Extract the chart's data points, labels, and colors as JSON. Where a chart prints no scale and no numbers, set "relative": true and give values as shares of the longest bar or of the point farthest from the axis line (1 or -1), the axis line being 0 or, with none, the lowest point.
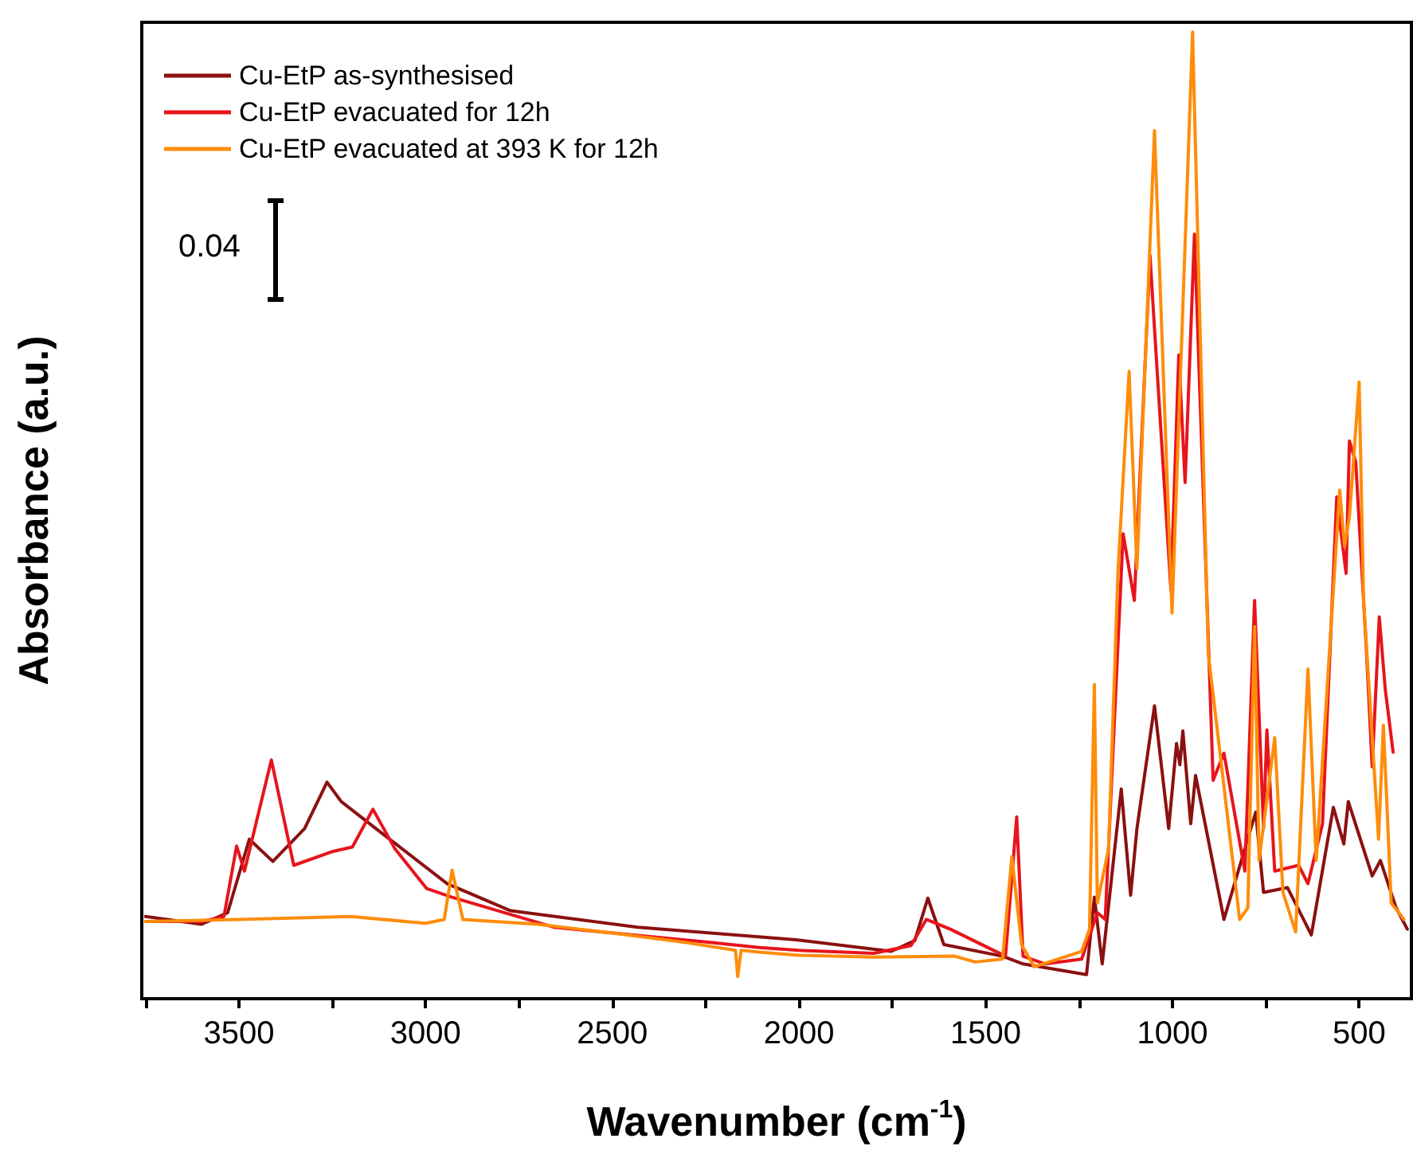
{
  "chart_data": {
    "type": "line",
    "relative": true,
    "xlabel": "Wavenumber (cm$^{-1}$)",
    "ylabel": "Absorbance (a.u.)",
    "xlim": [
      3760,
      360
    ],
    "xticks": [
      {
        "value": 3750,
        "label": null
      },
      3500,
      {
        "value": 3250,
        "label": null
      },
      3000,
      {
        "value": 2750,
        "label": null
      },
      2500,
      {
        "value": 2250,
        "label": null
      },
      2000,
      {
        "value": 1750,
        "label": null
      },
      1500,
      {
        "value": 1250,
        "label": null
      },
      1000,
      {
        "value": 750,
        "label": null
      },
      500
    ],
    "annotations": [
      "0.04"
    ],
    "legend": "top left",
    "grid": false,
    "marker": "none",
    "line_style": "solid",
    "series": [
      {
        "name": "Cu-EtP as-synthesised",
        "color": "#8b1010",
        "x": [
          3750,
          3600,
          3530,
          3472,
          3409,
          3324,
          3264,
          3226,
          3133,
          2942,
          2772,
          2432,
          2008,
          1753,
          1690,
          1655,
          1612,
          1455,
          1400,
          1230,
          1209,
          1188,
          1137,
          1112,
          1095,
          1048,
          1010,
          989,
          980,
          972,
          951,
          938,
          862,
          777,
          756,
          692,
          628,
          569,
          541,
          529,
          465,
          443,
          401,
          371
        ],
        "values": [
          0.085,
          0.077,
          0.089,
          0.165,
          0.142,
          0.176,
          0.224,
          0.204,
          0.176,
          0.119,
          0.091,
          0.074,
          0.061,
          0.049,
          0.06,
          0.104,
          0.056,
          0.044,
          0.036,
          0.025,
          0.105,
          0.036,
          0.217,
          0.107,
          0.176,
          0.303,
          0.176,
          0.264,
          0.242,
          0.277,
          0.181,
          0.231,
          0.082,
          0.193,
          0.11,
          0.115,
          0.066,
          0.198,
          0.16,
          0.204,
          0.127,
          0.143,
          0.094,
          0.072
        ]
      },
      {
        "name": "Cu-EtP evacuated for 12h",
        "color": "#e8141c",
        "x": [
          3750,
          3600,
          3540,
          3506,
          3485,
          3413,
          3353,
          3252,
          3196,
          3141,
          3082,
          2997,
          2929,
          2657,
          2233,
          2106,
          2000,
          1800,
          1700,
          1659,
          1595,
          1447,
          1417,
          1400,
          1341,
          1243,
          1201,
          1180,
          1132,
          1102,
          1060,
          1047,
          1004,
          983,
          966,
          941,
          891,
          862,
          806,
          780,
          756,
          747,
          726,
          662,
          637,
          598,
          560,
          535,
          526,
          509,
          480,
          465,
          446,
          430,
          409
        ],
        "values": [
          0.08,
          0.08,
          0.085,
          0.158,
          0.132,
          0.247,
          0.138,
          0.152,
          0.157,
          0.196,
          0.155,
          0.114,
          0.105,
          0.074,
          0.058,
          0.053,
          0.05,
          0.047,
          0.055,
          0.082,
          0.072,
          0.044,
          0.188,
          0.044,
          0.036,
          0.041,
          0.089,
          0.082,
          0.481,
          0.412,
          0.769,
          0.687,
          0.423,
          0.666,
          0.534,
          0.791,
          0.226,
          0.254,
          0.132,
          0.412,
          0.176,
          0.278,
          0.132,
          0.138,
          0.119,
          0.181,
          0.519,
          0.44,
          0.577,
          0.555,
          0.357,
          0.24,
          0.395,
          0.32,
          0.255
        ]
      },
      {
        "name": "Cu-EtP evacuated at 393 K for 12h",
        "color": "#ff8c0a",
        "x": [
          3750,
          3500,
          3200,
          3000,
          2950,
          2929,
          2900,
          2700,
          2500,
          2300,
          2170,
          2164,
          2155,
          2100,
          2000,
          1800,
          1583,
          1528,
          1455,
          1430,
          1404,
          1370,
          1243,
          1222,
          1209,
          1201,
          1171,
          1146,
          1116,
          1095,
          1048,
          1001,
          946,
          904,
          820,
          798,
          780,
          768,
          726,
          704,
          670,
          637,
          615,
          552,
          539,
          526,
          500,
          488,
          448,
          435,
          414,
          380
        ],
        "values": [
          0.08,
          0.082,
          0.085,
          0.078,
          0.082,
          0.133,
          0.082,
          0.077,
          0.068,
          0.058,
          0.05,
          0.023,
          0.05,
          0.048,
          0.045,
          0.043,
          0.044,
          0.038,
          0.041,
          0.147,
          0.056,
          0.033,
          0.049,
          0.072,
          0.325,
          0.099,
          0.155,
          0.44,
          0.649,
          0.445,
          0.898,
          0.399,
          1,
          0.357,
          0.082,
          0.094,
          0.385,
          0.143,
          0.27,
          0.11,
          0.069,
          0.341,
          0.143,
          0.526,
          0.468,
          0.498,
          0.638,
          0.412,
          0.165,
          0.283,
          0.099,
          0.082
        ]
      }
    ]
  }
}
